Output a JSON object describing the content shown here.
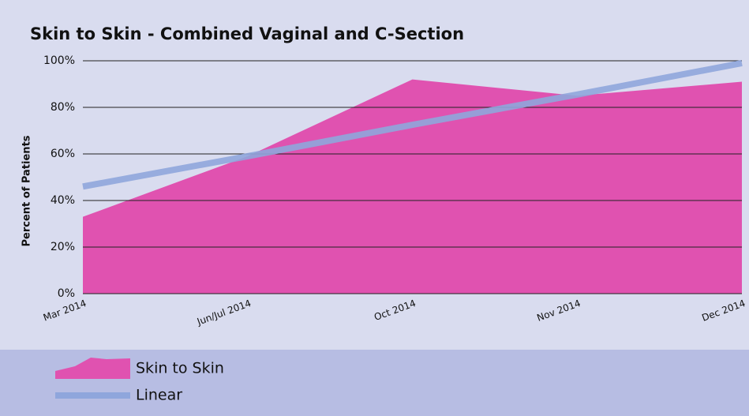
{
  "chart_data": {
    "type": "area",
    "title": "Skin to Skin - Combined Vaginal and C-Section",
    "y_label": "Percent of Patients",
    "categories": [
      "Mar 2014",
      "Jun/Jul 2014",
      "Oct 2014",
      "Nov 2014",
      "Dec 2014"
    ],
    "series": [
      {
        "name": "Skin to Skin",
        "type": "area",
        "color": "#e052b0",
        "values": [
          33,
          59,
          92,
          85,
          91
        ]
      },
      {
        "name": "Linear",
        "type": "line",
        "color": "#8fa6dc",
        "values": [
          46,
          59,
          72.5,
          85.5,
          99
        ]
      }
    ],
    "ylim": [
      0,
      100
    ],
    "yticks": [
      {
        "value": 0,
        "label": "0%"
      },
      {
        "value": 20,
        "label": "20%"
      },
      {
        "value": 40,
        "label": "40%"
      },
      {
        "value": 60,
        "label": "60%"
      },
      {
        "value": 80,
        "label": "80%"
      },
      {
        "value": 100,
        "label": "100%"
      }
    ],
    "grid": true,
    "legend": "bottom"
  }
}
